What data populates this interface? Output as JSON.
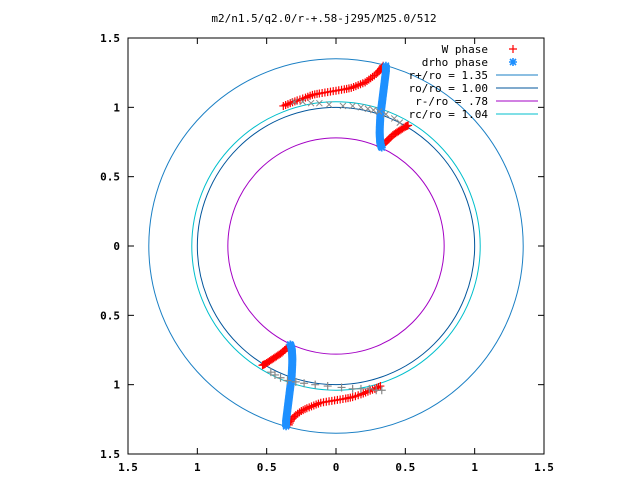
{
  "chart_data": {
    "type": "scatter",
    "title": "m2/n1.5/q2.0/r-+.58-j295/M25.0/512",
    "xlabel": "",
    "ylabel": "",
    "xlim": [
      -1.5,
      1.5
    ],
    "ylim": [
      -1.5,
      1.5
    ],
    "x_tick_values": [
      -1.5,
      -1.0,
      -0.5,
      0.0,
      0.5,
      1.0,
      1.5
    ],
    "x_tick_labels": [
      "1.5",
      "1",
      "0.5",
      "0",
      "0.5",
      "1",
      "1.5"
    ],
    "y_tick_values": [
      1.5,
      1.0,
      0.5,
      0.0,
      -0.5,
      -1.0,
      -1.5
    ],
    "y_tick_labels": [
      "1.5",
      "1",
      "0.5",
      "0",
      "0.5",
      "1",
      "1.5"
    ],
    "grid": false,
    "legend_position": "top-right",
    "legend": [
      {
        "label": "W phase",
        "marker": "+",
        "color": "#ff0000"
      },
      {
        "label": "drho phase",
        "marker": "*",
        "color": "#1e90ff"
      },
      {
        "label": "r+/ro = 1.35",
        "line": true,
        "color": "#1a7fc4"
      },
      {
        "label": "ro/ro = 1.00",
        "line": true,
        "color": "#00559b"
      },
      {
        "label": "r-/ro =  .78",
        "line": true,
        "color": "#a300c4"
      },
      {
        "label": "rc/ro = 1.04",
        "line": true,
        "color": "#00bfcc"
      }
    ],
    "circles": [
      {
        "name": "r+/ro = 1.35",
        "radius": 1.35,
        "color": "#1a7fc4"
      },
      {
        "name": "ro/ro = 1.00",
        "radius": 1.0,
        "color": "#00559b"
      },
      {
        "name": "r-/ro =  .78",
        "radius": 0.78,
        "color": "#a300c4"
      },
      {
        "name": "rc/ro = 1.04",
        "radius": 1.04,
        "color": "#00bfcc"
      }
    ],
    "series": [
      {
        "name": "W phase",
        "marker": "+",
        "color": "#ff0000",
        "curves": [
          {
            "x": [
              -0.38,
              -0.33,
              -0.28,
              -0.22,
              -0.17,
              -0.12,
              -0.06,
              0.0,
              0.06,
              0.11,
              0.16,
              0.21,
              0.25,
              0.29,
              0.32,
              0.34
            ],
            "y": [
              1.01,
              1.03,
              1.05,
              1.07,
              1.09,
              1.1,
              1.11,
              1.12,
              1.13,
              1.14,
              1.16,
              1.18,
              1.21,
              1.24,
              1.27,
              1.3
            ]
          },
          {
            "x": [
              0.32,
              0.35,
              0.38,
              0.41,
              0.44,
              0.47,
              0.5,
              0.52
            ],
            "y": [
              0.72,
              0.74,
              0.77,
              0.8,
              0.82,
              0.84,
              0.86,
              0.87
            ]
          },
          {
            "x": [
              0.32,
              0.28,
              0.23,
              0.18,
              0.12,
              0.07,
              0.01,
              -0.05,
              -0.11,
              -0.16,
              -0.21,
              -0.25,
              -0.29,
              -0.32,
              -0.34
            ],
            "y": [
              -1.01,
              -1.03,
              -1.05,
              -1.07,
              -1.09,
              -1.1,
              -1.11,
              -1.12,
              -1.13,
              -1.15,
              -1.17,
              -1.19,
              -1.22,
              -1.25,
              -1.29
            ]
          },
          {
            "x": [
              -0.33,
              -0.36,
              -0.39,
              -0.42,
              -0.45,
              -0.48,
              -0.51,
              -0.53
            ],
            "y": [
              -0.72,
              -0.74,
              -0.77,
              -0.79,
              -0.81,
              -0.83,
              -0.85,
              -0.86
            ]
          }
        ]
      },
      {
        "name": "drho phase",
        "marker": "*",
        "color": "#1e90ff",
        "curves": [
          {
            "x": [
              0.36,
              0.36,
              0.355,
              0.35,
              0.345,
              0.34,
              0.335,
              0.33,
              0.325,
              0.32,
              0.318,
              0.316,
              0.315,
              0.316,
              0.318,
              0.32,
              0.325,
              0.33
            ],
            "y": [
              1.3,
              1.26,
              1.22,
              1.18,
              1.14,
              1.1,
              1.06,
              1.02,
              0.98,
              0.94,
              0.9,
              0.86,
              0.82,
              0.79,
              0.76,
              0.74,
              0.72,
              0.71
            ]
          },
          {
            "x": [
              -0.36,
              -0.36,
              -0.355,
              -0.35,
              -0.345,
              -0.34,
              -0.335,
              -0.33,
              -0.325,
              -0.32,
              -0.318,
              -0.316,
              -0.315,
              -0.316,
              -0.318,
              -0.32,
              -0.325,
              -0.33
            ],
            "y": [
              -1.3,
              -1.26,
              -1.22,
              -1.18,
              -1.14,
              -1.1,
              -1.06,
              -1.02,
              -0.98,
              -0.94,
              -0.9,
              -0.86,
              -0.82,
              -0.79,
              -0.76,
              -0.74,
              -0.72,
              -0.71
            ]
          }
        ]
      },
      {
        "name": "",
        "marker": "x",
        "color": "#888888",
        "curves": [
          {
            "x": [
              -0.3,
              -0.24,
              -0.18,
              -0.12,
              -0.05,
              0.05,
              0.12,
              0.18,
              0.23,
              0.27,
              0.31,
              0.36,
              0.42,
              0.46
            ],
            "y": [
              1.04,
              1.04,
              1.03,
              1.03,
              1.02,
              1.01,
              1.01,
              1.0,
              0.99,
              0.98,
              0.97,
              0.95,
              0.92,
              0.89
            ]
          }
        ]
      },
      {
        "name": "",
        "marker": "+",
        "color": "#888888",
        "curves": [
          {
            "x": [
              -0.47,
              -0.44,
              -0.4,
              -0.35,
              -0.29,
              -0.23,
              -0.15,
              -0.06,
              0.04,
              0.12,
              0.18,
              0.24,
              0.29,
              0.33
            ],
            "y": [
              -0.91,
              -0.93,
              -0.95,
              -0.97,
              -0.98,
              -0.99,
              -1.0,
              -1.01,
              -1.02,
              -1.03,
              -1.03,
              -1.03,
              -1.04,
              -1.04
            ]
          }
        ]
      }
    ]
  }
}
